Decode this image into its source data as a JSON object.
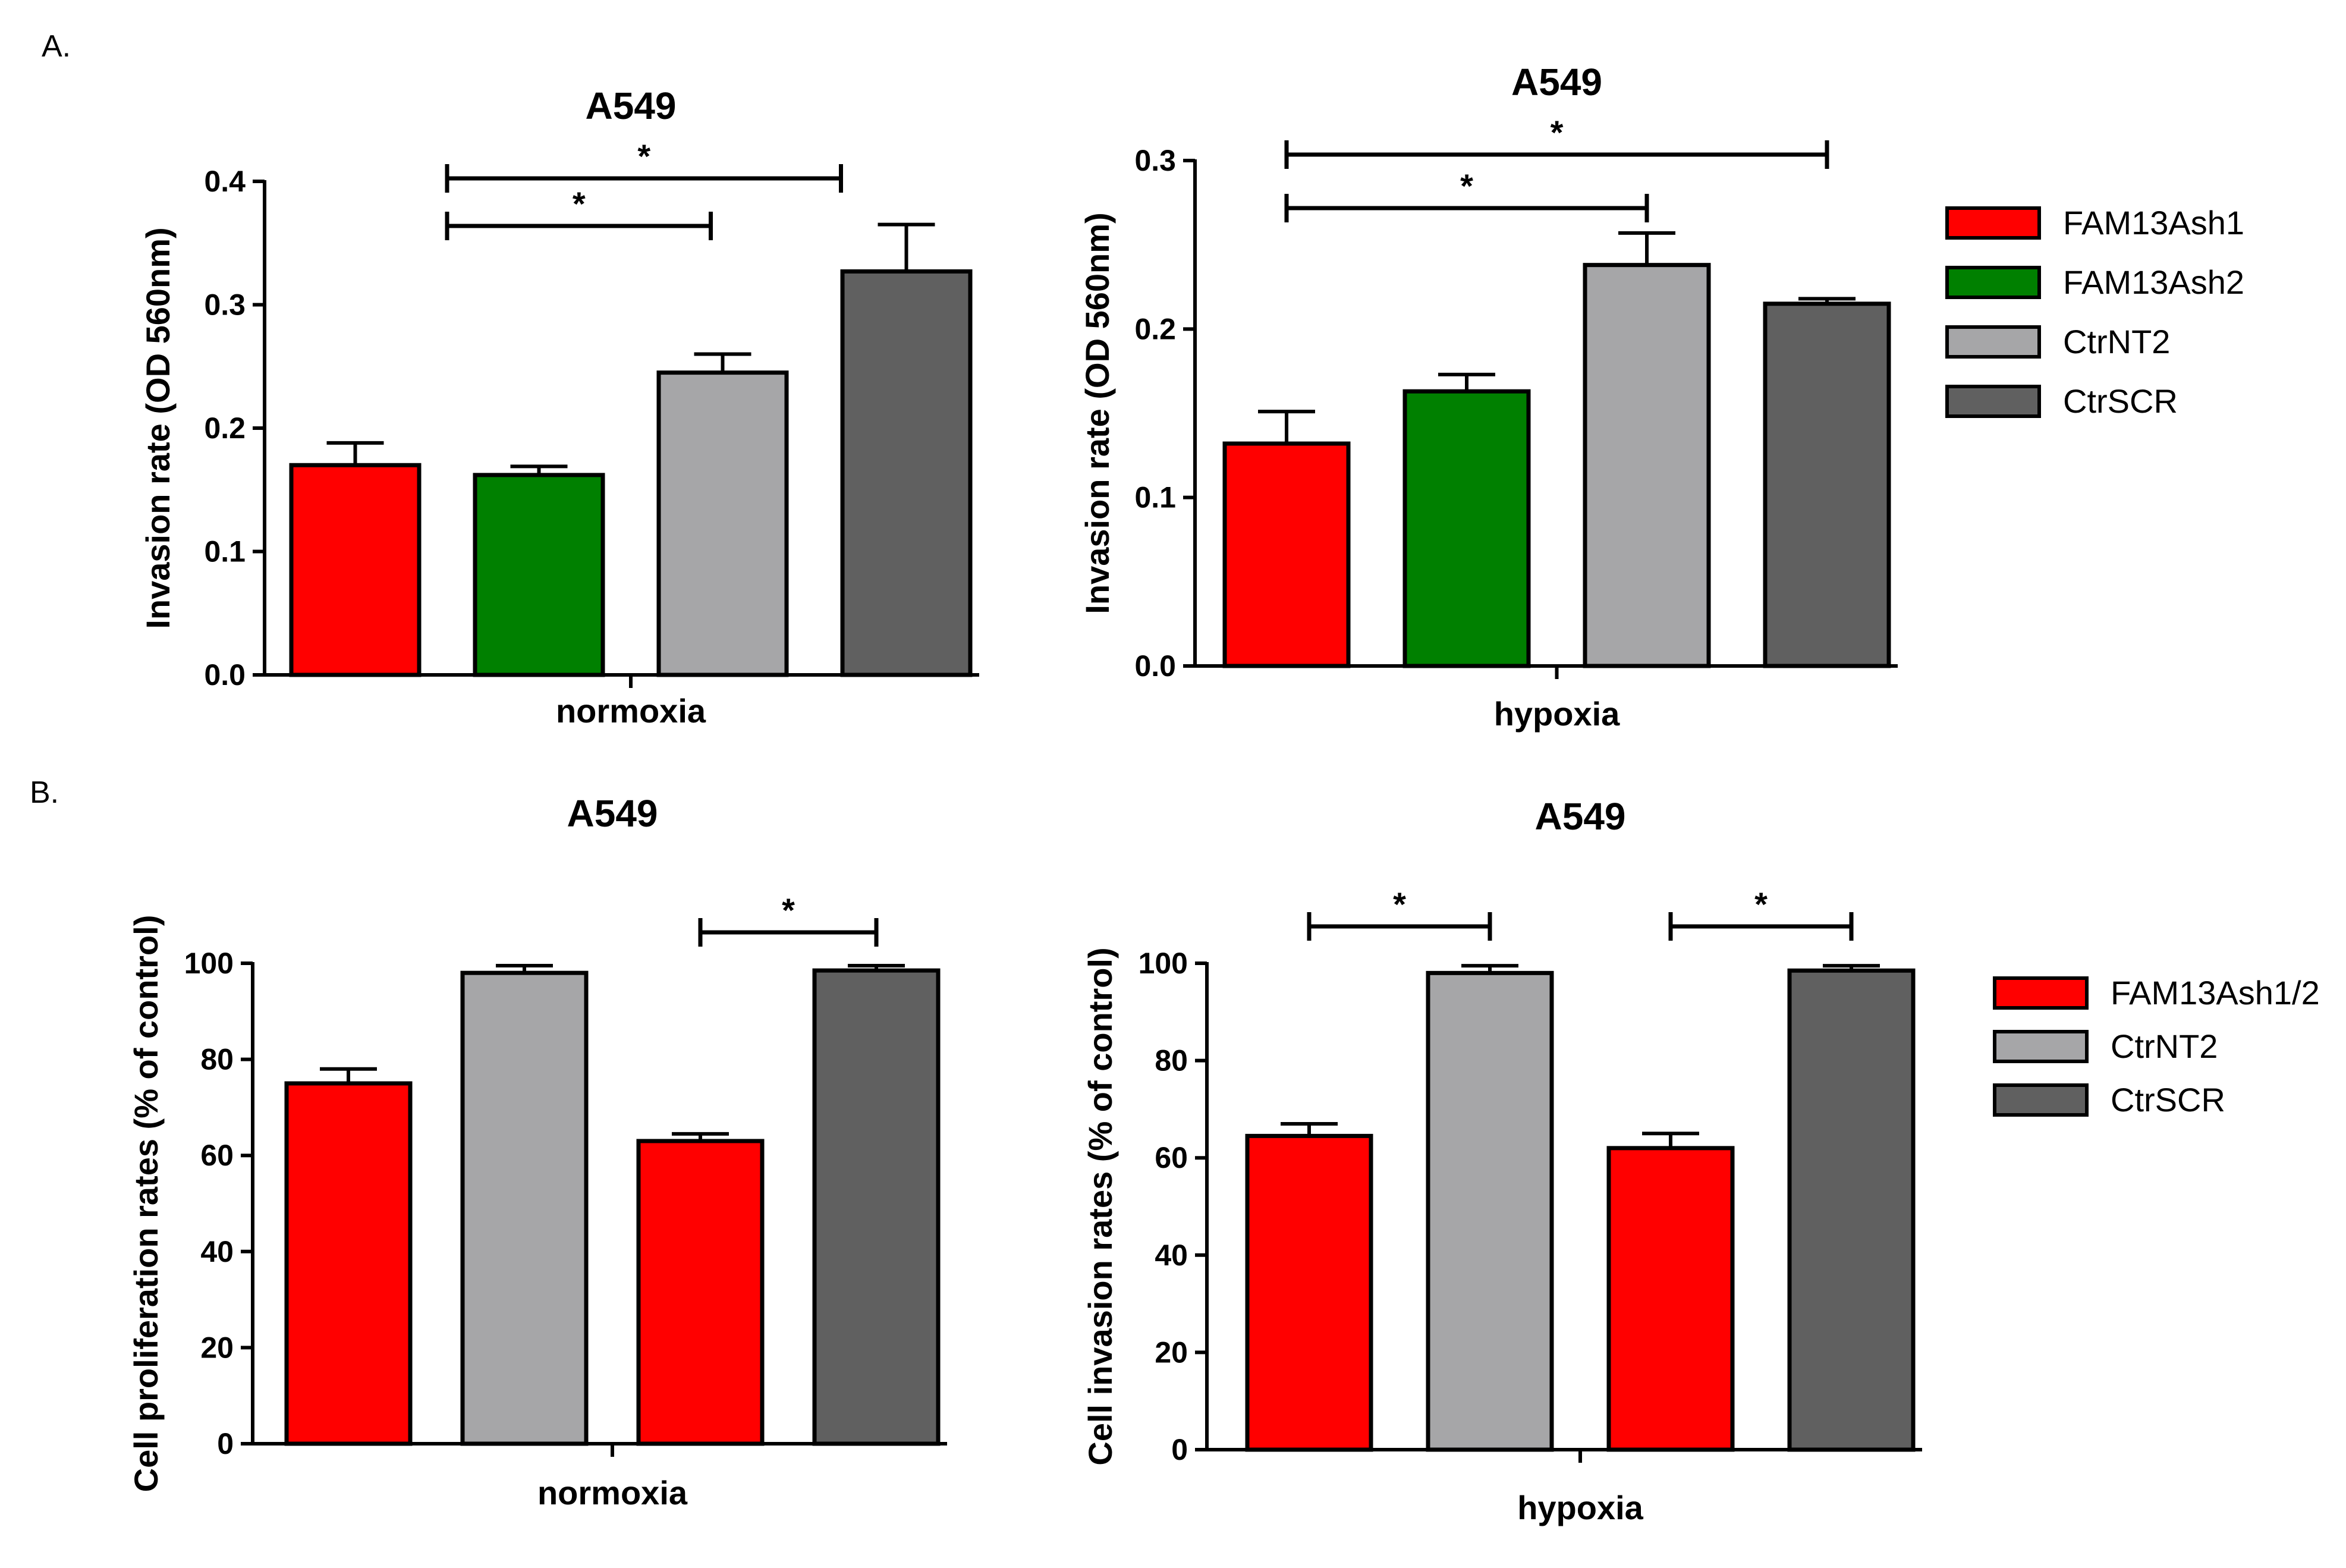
{
  "panels": [
    {
      "label": "A."
    },
    {
      "label": "B."
    }
  ],
  "legends": [
    {
      "items": [
        {
          "label": "FAM13Ash1",
          "color": "#ff0000"
        },
        {
          "label": "FAM13Ash2",
          "color": "#008000"
        },
        {
          "label": "CtrNT2",
          "color": "#a6a6a8"
        },
        {
          "label": "CtrSCR",
          "color": "#606060"
        }
      ]
    },
    {
      "items": [
        {
          "label": "FAM13Ash1/2",
          "color": "#ff0000"
        },
        {
          "label": "CtrNT2",
          "color": "#a6a6a8"
        },
        {
          "label": "CtrSCR",
          "color": "#606060"
        }
      ]
    }
  ],
  "chart_data": [
    {
      "type": "bar",
      "title": "A549",
      "xlabel": "normoxia",
      "ylabel": "Invasion rate (OD 560nm)",
      "ylim": [
        0,
        0.4
      ],
      "yticks": [
        "0.0",
        "0.1",
        "0.2",
        "0.3",
        "0.4"
      ],
      "categories": [
        "FAM13Ash1",
        "FAM13Ash2",
        "CtrNT2",
        "CtrSCR"
      ],
      "values": [
        0.17,
        0.162,
        0.245,
        0.327
      ],
      "errors": [
        0.018,
        0.007,
        0.015,
        0.038
      ],
      "colors": [
        "#ff0000",
        "#008000",
        "#a6a6a8",
        "#606060"
      ],
      "significance": [
        {
          "from": 1,
          "to": 2,
          "label": "*"
        },
        {
          "from": 1,
          "to": 3,
          "label": "*"
        }
      ]
    },
    {
      "type": "bar",
      "title": "A549",
      "xlabel": "hypoxia",
      "ylabel": "Invasion rate (OD 560nm)",
      "ylim": [
        0,
        0.3
      ],
      "yticks": [
        "0.0",
        "0.1",
        "0.2",
        "0.3"
      ],
      "categories": [
        "FAM13Ash1",
        "FAM13Ash2",
        "CtrNT2",
        "CtrSCR"
      ],
      "values": [
        0.132,
        0.163,
        0.238,
        0.215
      ],
      "errors": [
        0.019,
        0.01,
        0.019,
        0.003
      ],
      "colors": [
        "#ff0000",
        "#008000",
        "#a6a6a8",
        "#606060"
      ],
      "significance": [
        {
          "from": 0,
          "to": 2,
          "label": "*"
        },
        {
          "from": 0,
          "to": 3,
          "label": "*"
        }
      ]
    },
    {
      "type": "bar",
      "title": "A549",
      "xlabel": "normoxia",
      "ylabel": "Cell proliferation rates (% of control)",
      "ylim": [
        0,
        100
      ],
      "yticks": [
        "0",
        "20",
        "40",
        "60",
        "80",
        "100"
      ],
      "categories": [
        "FAM13Ash1/2",
        "CtrNT2",
        "FAM13Ash1/2",
        "CtrSCR"
      ],
      "values": [
        75,
        98,
        63,
        98.5
      ],
      "errors": [
        3,
        1.5,
        1.5,
        1
      ],
      "colors": [
        "#ff0000",
        "#a6a6a8",
        "#ff0000",
        "#606060"
      ],
      "significance": [
        {
          "from": 2,
          "to": 3,
          "label": "*"
        }
      ]
    },
    {
      "type": "bar",
      "title": "A549",
      "xlabel": "hypoxia",
      "ylabel": "Cell invasion rates (% of control)",
      "ylim": [
        0,
        100
      ],
      "yticks": [
        "0",
        "20",
        "40",
        "60",
        "80",
        "100"
      ],
      "categories": [
        "FAM13Ash1/2",
        "CtrNT2",
        "FAM13Ash1/2",
        "CtrSCR"
      ],
      "values": [
        64.5,
        98,
        62,
        98.5
      ],
      "errors": [
        2.5,
        1.5,
        3,
        1
      ],
      "colors": [
        "#ff0000",
        "#a6a6a8",
        "#ff0000",
        "#606060"
      ],
      "significance": [
        {
          "from": 0,
          "to": 1,
          "label": "*"
        },
        {
          "from": 2,
          "to": 3,
          "label": "*"
        }
      ]
    }
  ]
}
